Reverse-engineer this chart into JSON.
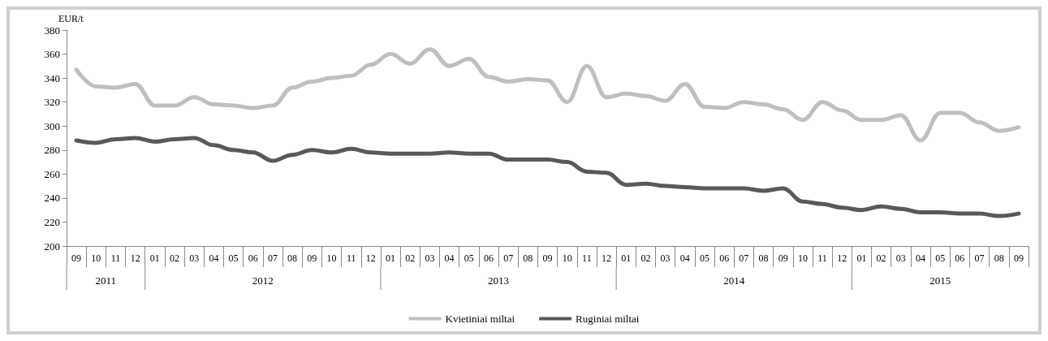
{
  "chart_data": {
    "type": "line",
    "ylabel": "EUR/t",
    "categories": [
      "09",
      "10",
      "11",
      "12",
      "01",
      "02",
      "03",
      "04",
      "05",
      "06",
      "07",
      "08",
      "09",
      "10",
      "11",
      "12",
      "01",
      "02",
      "03",
      "04",
      "05",
      "06",
      "07",
      "08",
      "09",
      "10",
      "11",
      "12",
      "01",
      "02",
      "03",
      "04",
      "05",
      "06",
      "07",
      "08",
      "09",
      "10",
      "11",
      "12",
      "01",
      "02",
      "03",
      "04",
      "05",
      "06",
      "07",
      "08",
      "09"
    ],
    "annotations": [
      "2011",
      "2012",
      "2013",
      "2014",
      "2015"
    ],
    "series": [
      {
        "name": "Kvietiniai miltai",
        "color": "#bfbfbf",
        "values": [
          347,
          333,
          332,
          335,
          317,
          317,
          324,
          318,
          317,
          315,
          317,
          332,
          337,
          340,
          342,
          351,
          360,
          352,
          364,
          350,
          356,
          341,
          337,
          339,
          338,
          320,
          350,
          324,
          327,
          325,
          321,
          335,
          316,
          315,
          320,
          318,
          314,
          305,
          320,
          313,
          305,
          305,
          309,
          288,
          311,
          311,
          303,
          296,
          299
        ]
      },
      {
        "name": "Ruginiai miltai",
        "color": "#595959",
        "values": [
          288,
          286,
          289,
          290,
          287,
          289,
          290,
          284,
          280,
          278,
          271,
          276,
          280,
          278,
          281,
          278,
          277,
          277,
          277,
          278,
          277,
          277,
          272,
          272,
          272,
          270,
          262,
          261,
          251,
          252,
          250,
          249,
          248,
          248,
          248,
          246,
          248,
          237,
          235,
          232,
          230,
          233,
          231,
          228,
          228,
          227,
          227,
          225,
          227
        ]
      }
    ],
    "ylim": [
      200,
      380
    ],
    "yticks": [
      200,
      220,
      240,
      260,
      280,
      300,
      320,
      340,
      360,
      380
    ],
    "grid": false,
    "legend": "bottom"
  }
}
